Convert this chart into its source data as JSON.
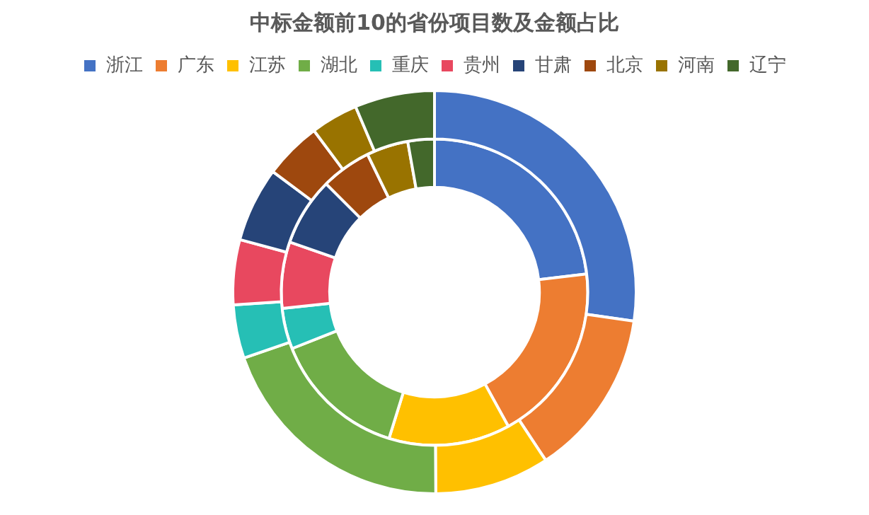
{
  "chart_data": {
    "type": "donut",
    "title": "中标金额前10的省份项目数及金额占比",
    "categories": [
      "浙江",
      "广东",
      "江苏",
      "湖北",
      "重庆",
      "贵州",
      "甘肃",
      "北京",
      "河南",
      "辽宁"
    ],
    "colors": [
      "#4472c4",
      "#ed7d31",
      "#ffc000",
      "#70ad47",
      "#26bfb5",
      "#e8485f",
      "#264478",
      "#9e480e",
      "#997300",
      "#43682b"
    ],
    "series": [
      {
        "values": [
          27.3,
          13.4,
          9.2,
          19.8,
          4.3,
          5.2,
          6.0,
          4.6,
          3.8,
          6.4
        ]
      },
      {
        "values": [
          23.1,
          18.9,
          12.8,
          14.2,
          4.3,
          7.0,
          7.2,
          5.3,
          4.4,
          2.8
        ]
      }
    ],
    "legend": "top"
  }
}
